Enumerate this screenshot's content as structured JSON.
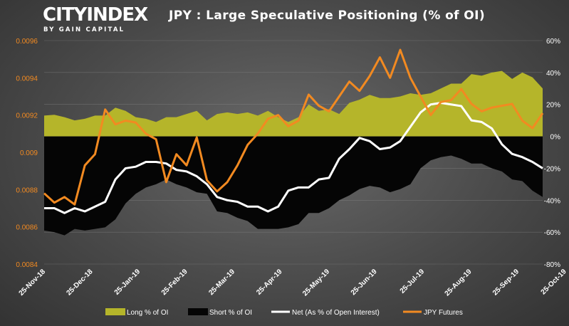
{
  "header": {
    "logo_main": "CITYINDEX",
    "logo_sub": "BY GAIN CAPITAL"
  },
  "colors": {
    "long": "#b5b52a",
    "short": "#050505",
    "net": "#ffffff",
    "futures": "#f28a21",
    "left_axis_text": "#f28a21",
    "right_axis_text": "#ffffff"
  },
  "chart_data": {
    "type": "area",
    "title": "JPY : Large Speculative Positioning (% of OI)",
    "x_tick_labels": [
      "25-Nov-18",
      "25-Dec-18",
      "25-Jan-19",
      "25-Feb-19",
      "25-Mar-19",
      "25-Apr-19",
      "25-May-19",
      "25-Jun-19",
      "25-Jul-19",
      "25-Aug-19",
      "25-Sep-19",
      "25-Oct-19"
    ],
    "left_axis": {
      "ticks": [
        "0.0084",
        "0.0086",
        "0.0088",
        "0.009",
        "0.0092",
        "0.0094",
        "0.0096"
      ],
      "range": [
        0.0084,
        0.0096
      ]
    },
    "right_axis": {
      "ticks": [
        "-80%",
        "-60%",
        "-40%",
        "-20%",
        "0%",
        "20%",
        "40%",
        "60%"
      ],
      "range": [
        -80,
        60
      ]
    },
    "n_points": 50,
    "legend_position": "bottom",
    "grid": true,
    "series": [
      {
        "name": "Long % of OI",
        "axis": "right",
        "kind": "area",
        "values": [
          13,
          13.5,
          12,
          10,
          11,
          13,
          13,
          18,
          16,
          12,
          11,
          9,
          12,
          12,
          14,
          16,
          10,
          14,
          15,
          14,
          15,
          13,
          16,
          12,
          9,
          12,
          20,
          16,
          17,
          14,
          21,
          23,
          26,
          24,
          24,
          25,
          27,
          26,
          27,
          30,
          33,
          33,
          39,
          38,
          40,
          41,
          36,
          40,
          37,
          30
        ]
      },
      {
        "name": "Short % of OI",
        "axis": "right",
        "kind": "area",
        "values": [
          -59,
          -60,
          -62,
          -58,
          -59,
          -58,
          -57,
          -52,
          -42,
          -36,
          -32,
          -30,
          -27,
          -30,
          -32,
          -35,
          -36,
          -47,
          -48,
          -51,
          -53,
          -58,
          -58,
          -58,
          -57,
          -55,
          -48,
          -48,
          -45,
          -40,
          -37,
          -33,
          -31,
          -32,
          -35,
          -33,
          -30,
          -20,
          -15,
          -13,
          -12,
          -14,
          -17,
          -17,
          -20,
          -22,
          -27,
          -28,
          -34,
          -38
        ]
      },
      {
        "name": "Net (As % of Open Interest)",
        "axis": "right",
        "kind": "line",
        "values": [
          -45,
          -45,
          -48,
          -45,
          -47,
          -44,
          -41,
          -27,
          -20,
          -19,
          -16,
          -16,
          -17,
          -21,
          -22,
          -25,
          -30,
          -38,
          -40,
          -41,
          -44,
          -44,
          -47,
          -44,
          -34,
          -32,
          -32,
          -27,
          -26,
          -14,
          -8,
          -1,
          -3,
          -8,
          -7,
          -3,
          6,
          15,
          20,
          21,
          20,
          19,
          10,
          9,
          5,
          -5,
          -11,
          -13,
          -16,
          -20
        ]
      },
      {
        "name": "JPY Futures",
        "axis": "left",
        "kind": "line",
        "values": [
          0.00878,
          0.00873,
          0.00876,
          0.00872,
          0.00893,
          0.00899,
          0.00923,
          0.00915,
          0.00917,
          0.00916,
          0.0091,
          0.00907,
          0.00884,
          0.00899,
          0.00893,
          0.00908,
          0.00885,
          0.00879,
          0.00884,
          0.00893,
          0.00904,
          0.0091,
          0.00918,
          0.0092,
          0.00914,
          0.00917,
          0.00931,
          0.00925,
          0.00922,
          0.0093,
          0.00938,
          0.00933,
          0.00941,
          0.00951,
          0.0094,
          0.00955,
          0.0094,
          0.0093,
          0.0092,
          0.00927,
          0.00928,
          0.00934,
          0.00926,
          0.00922,
          0.00924,
          0.00925,
          0.00926,
          0.00917,
          0.00913,
          0.00921
        ]
      }
    ]
  }
}
